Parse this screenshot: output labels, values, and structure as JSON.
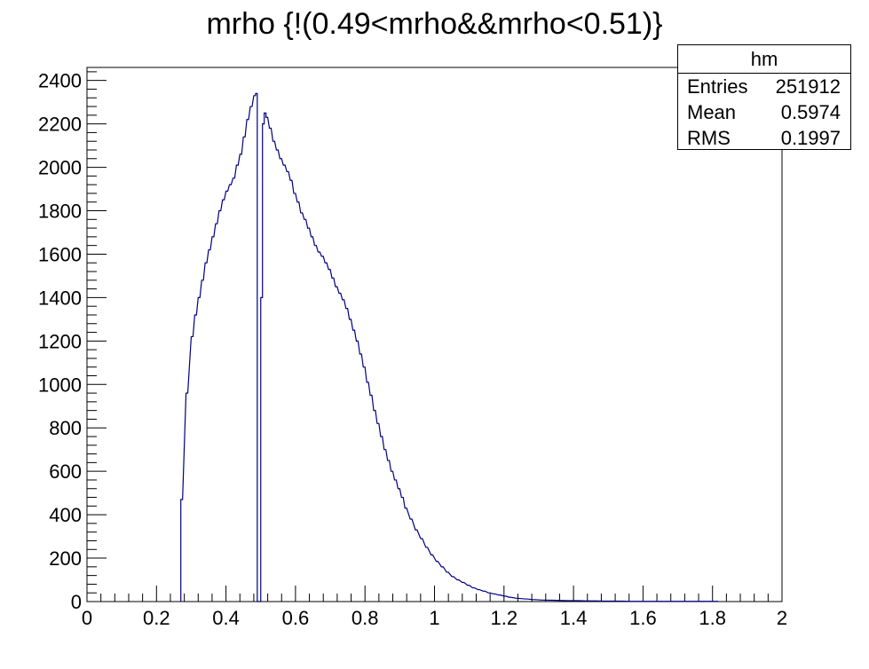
{
  "chart_data": {
    "type": "histogram",
    "title": "mrho {!(0.49<mrho&&mrho<0.51)}",
    "xlabel": "",
    "ylabel": "",
    "xlim": [
      0,
      2
    ],
    "ylim": [
      0,
      2460
    ],
    "x_ticks": [
      "0",
      "0.2",
      "0.4",
      "0.6",
      "0.8",
      "1",
      "1.2",
      "1.4",
      "1.6",
      "1.8",
      "2"
    ],
    "y_ticks": [
      "0",
      "200",
      "400",
      "600",
      "800",
      "1000",
      "1200",
      "1400",
      "1600",
      "1800",
      "2000",
      "2200",
      "2400"
    ],
    "line_color": "#000080",
    "grid": false,
    "stats_box": {
      "name": "hm",
      "rows": [
        {
          "label": "Entries",
          "value": "251912"
        },
        {
          "label": "Mean",
          "value": "0.5974"
        },
        {
          "label": "RMS",
          "value": "0.1997"
        }
      ]
    },
    "bin_width": 0.005,
    "bin_centers": [
      0.2725,
      0.2875,
      0.3025,
      0.3125,
      0.3225,
      0.3325,
      0.3425,
      0.3525,
      0.3625,
      0.3725,
      0.3825,
      0.3925,
      0.4025,
      0.4125,
      0.4225,
      0.4325,
      0.4425,
      0.4525,
      0.4625,
      0.4725,
      0.4825,
      0.4875,
      0.4925,
      0.4975,
      0.5025,
      0.5075,
      0.5125,
      0.5175,
      0.5275,
      0.5375,
      0.5475,
      0.5575,
      0.5675,
      0.5775,
      0.5875,
      0.5975,
      0.6075,
      0.6175,
      0.6275,
      0.6375,
      0.6475,
      0.6575,
      0.6675,
      0.6775,
      0.6875,
      0.6975,
      0.7075,
      0.7175,
      0.7275,
      0.7375,
      0.7475,
      0.7575,
      0.7675,
      0.7775,
      0.7875,
      0.7975,
      0.8075,
      0.8175,
      0.8275,
      0.8375,
      0.8475,
      0.8575,
      0.8675,
      0.8775,
      0.8875,
      0.8975,
      0.9075,
      0.9175,
      0.9325,
      0.9475,
      0.9625,
      0.9775,
      0.9925,
      1.0075,
      1.0225,
      1.0375,
      1.0525,
      1.0675,
      1.0825,
      1.0975,
      1.1125,
      1.1275,
      1.1425,
      1.1575,
      1.1725,
      1.1875,
      1.2025,
      1.2175,
      1.2375,
      1.2625,
      1.2875,
      1.3125,
      1.3375,
      1.3625,
      1.3875,
      1.4125,
      1.4375,
      1.4625,
      1.4875,
      1.5125,
      1.5375,
      1.5625,
      1.5875,
      1.6125,
      1.6375,
      1.6625,
      1.6875,
      1.7125,
      1.7375,
      1.7625,
      1.7875,
      1.8125
    ],
    "values": [
      470,
      960,
      1220,
      1320,
      1400,
      1480,
      1560,
      1620,
      1680,
      1740,
      1800,
      1850,
      1890,
      1920,
      1950,
      2010,
      2060,
      2140,
      2220,
      2280,
      2330,
      2340,
      0,
      0,
      1400,
      2200,
      2250,
      2230,
      2180,
      2120,
      2080,
      2040,
      2010,
      1980,
      1940,
      1880,
      1840,
      1790,
      1760,
      1720,
      1680,
      1640,
      1610,
      1590,
      1560,
      1530,
      1490,
      1450,
      1420,
      1390,
      1350,
      1300,
      1250,
      1200,
      1140,
      1080,
      1010,
      950,
      880,
      820,
      760,
      700,
      650,
      600,
      560,
      520,
      480,
      430,
      380,
      330,
      290,
      250,
      215,
      185,
      160,
      135,
      115,
      100,
      88,
      75,
      63,
      55,
      48,
      40,
      35,
      30,
      25,
      20,
      15,
      12,
      9,
      7,
      6,
      5,
      4,
      4,
      3,
      3,
      2,
      2,
      2,
      1,
      1,
      1,
      1,
      1,
      1,
      1,
      1,
      1,
      1,
      1
    ]
  }
}
